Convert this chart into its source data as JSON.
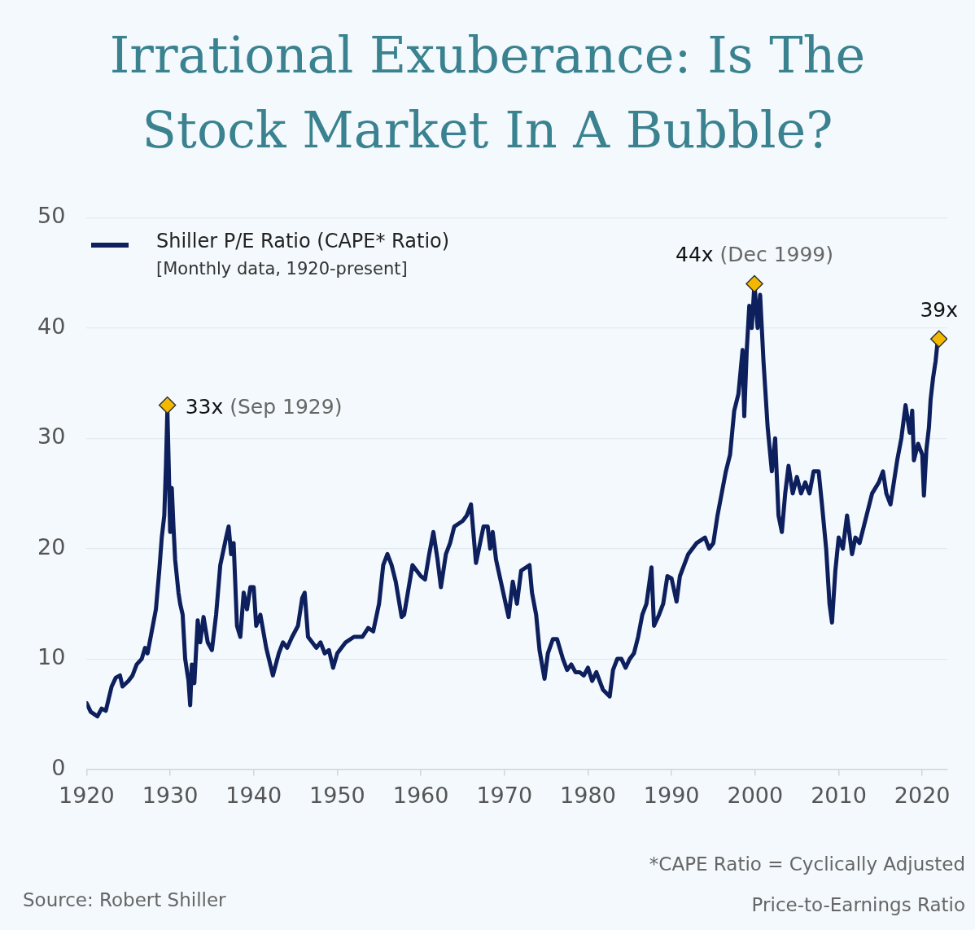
{
  "chart_data": {
    "type": "line",
    "title": "Irrational Exuberance: Is The Stock Market In A Bubble?",
    "annotations": [
      "[Monthly data, 1920-present]",
      "*CAPE Ratio = Cyclically Adjusted Price-to-Earnings Ratio",
      "Source: Robert Shiller"
    ],
    "xlim": [
      1920,
      2023
    ],
    "xticks": [
      1920,
      1930,
      1940,
      1950,
      1960,
      1970,
      1980,
      1990,
      2000,
      2010,
      2020
    ],
    "ylim": [
      0,
      50
    ],
    "yticks": [
      0,
      10,
      20,
      30,
      40,
      50
    ],
    "grid": "y",
    "legend": "top left",
    "line_style": "solid",
    "series": [
      {
        "name": "Shiller P/E Ratio (CAPE* Ratio)",
        "color": "#0d1f5c",
        "marker": "none",
        "x": [
          1920.0,
          1920.5,
          1921.3,
          1921.8,
          1922.3,
          1923.0,
          1923.5,
          1924.0,
          1924.3,
          1925.0,
          1925.5,
          1926.0,
          1926.6,
          1927.0,
          1927.3,
          1927.8,
          1928.3,
          1928.7,
          1929.0,
          1929.3,
          1929.5,
          1929.67,
          1929.85,
          1930.0,
          1930.2,
          1930.4,
          1930.6,
          1931.0,
          1931.2,
          1931.5,
          1931.8,
          1932.2,
          1932.4,
          1932.6,
          1932.9,
          1933.3,
          1933.6,
          1934.0,
          1934.5,
          1935.0,
          1935.5,
          1936.0,
          1936.7,
          1937.0,
          1937.3,
          1937.6,
          1938.0,
          1938.4,
          1938.8,
          1939.2,
          1939.6,
          1940.0,
          1940.3,
          1940.8,
          1941.5,
          1942.3,
          1943.0,
          1943.5,
          1944.0,
          1944.6,
          1945.3,
          1945.8,
          1946.1,
          1946.5,
          1947.0,
          1947.5,
          1948.0,
          1948.5,
          1949.0,
          1949.5,
          1950.0,
          1951.0,
          1952.0,
          1953.0,
          1953.7,
          1954.3,
          1955.0,
          1955.5,
          1956.0,
          1956.5,
          1957.0,
          1957.7,
          1958.0,
          1959.0,
          1959.5,
          1960.0,
          1960.5,
          1961.0,
          1961.5,
          1962.0,
          1962.4,
          1963.0,
          1963.5,
          1964.0,
          1965.0,
          1965.5,
          1966.0,
          1966.6,
          1967.5,
          1968.0,
          1968.3,
          1968.6,
          1969.0,
          1970.5,
          1971.0,
          1971.5,
          1972.0,
          1973.0,
          1973.3,
          1973.8,
          1974.2,
          1974.8,
          1975.2,
          1975.8,
          1976.3,
          1977.0,
          1977.5,
          1978.0,
          1978.5,
          1979.0,
          1979.5,
          1980.0,
          1980.5,
          1981.0,
          1981.8,
          1982.6,
          1983.0,
          1983.5,
          1984.0,
          1984.5,
          1985.0,
          1985.5,
          1986.0,
          1986.5,
          1987.0,
          1987.6,
          1987.9,
          1988.5,
          1989.0,
          1989.5,
          1990.0,
          1990.6,
          1991.0,
          1992.0,
          1993.0,
          1994.0,
          1994.5,
          1995.0,
          1995.5,
          1996.0,
          1996.5,
          1997.0,
          1997.5,
          1998.0,
          1998.5,
          1998.7,
          1999.0,
          1999.3,
          1999.6,
          1999.92,
          2000.3,
          2000.6,
          2001.0,
          2001.5,
          2002.0,
          2002.4,
          2002.8,
          2003.2,
          2003.6,
          2004.0,
          2004.5,
          2005.0,
          2005.5,
          2006.0,
          2006.5,
          2007.0,
          2007.6,
          2008.0,
          2008.5,
          2008.9,
          2009.2,
          2009.6,
          2010.0,
          2010.5,
          2011.0,
          2011.6,
          2012.0,
          2012.5,
          2013.0,
          2014.0,
          2014.8,
          2015.3,
          2015.7,
          2016.2,
          2016.7,
          2017.0,
          2017.5,
          2018.0,
          2018.5,
          2018.8,
          2019.0,
          2019.5,
          2020.0,
          2020.2,
          2020.5,
          2020.8,
          2021.0,
          2021.3,
          2021.6,
          2021.8,
          2022.0
        ],
        "values": [
          6.0,
          5.2,
          4.8,
          5.5,
          5.3,
          7.5,
          8.3,
          8.5,
          7.5,
          8.0,
          8.5,
          9.5,
          10,
          11,
          10.5,
          12.5,
          14.5,
          18,
          21,
          23,
          27.5,
          32.6,
          27,
          21.5,
          25.5,
          22,
          19,
          16,
          15,
          14,
          10,
          8,
          5.8,
          9.5,
          7.8,
          13.5,
          11.5,
          13.8,
          11.5,
          10.8,
          14,
          18.5,
          21,
          22,
          19.5,
          20.5,
          13,
          12,
          16,
          14.5,
          16.5,
          16.5,
          13,
          14,
          11,
          8.5,
          10.5,
          11.5,
          11,
          12,
          13,
          15.5,
          16,
          12,
          11.5,
          11,
          11.5,
          10.5,
          10.8,
          9.2,
          10.5,
          11.5,
          12,
          12,
          12.8,
          12.5,
          15,
          18.5,
          19.5,
          18.5,
          17,
          13.8,
          14,
          18.5,
          18,
          17.5,
          17.2,
          19.5,
          21.5,
          19,
          16.5,
          19.5,
          20.5,
          22,
          22.5,
          23,
          24,
          18.7,
          22,
          22,
          20,
          21.5,
          19,
          13.8,
          17,
          15,
          18,
          18.5,
          16,
          14,
          10.8,
          8.2,
          10.5,
          11.8,
          11.8,
          10,
          9,
          9.5,
          8.8,
          8.8,
          8.5,
          9.2,
          8,
          8.8,
          7.2,
          6.6,
          9,
          10,
          10,
          9.2,
          10,
          10.5,
          12,
          14,
          15,
          18.3,
          13,
          14,
          15,
          17.5,
          17.3,
          15.2,
          17.5,
          19.5,
          20.5,
          21,
          20,
          20.5,
          23,
          25,
          27,
          28.5,
          32.5,
          34,
          38,
          32,
          38,
          42,
          40,
          44,
          40,
          43,
          37,
          31,
          27,
          30,
          23,
          21.5,
          25,
          27.5,
          25,
          26.5,
          25,
          26,
          25,
          27,
          27,
          24,
          20,
          15,
          13.3,
          18,
          21,
          20,
          23,
          19.5,
          21,
          20.5,
          22,
          25,
          26,
          27,
          25,
          24,
          26.5,
          28,
          30,
          33,
          30.5,
          32.5,
          28,
          29.5,
          28.5,
          24.8,
          29,
          31,
          33.5,
          35.5,
          37,
          38.5,
          39
        ]
      },
      {
        "type": "scatter",
        "color": "#f5b800",
        "marker": "diamond",
        "x": [
          1929.67,
          1999.92,
          2022.0
        ],
        "values": [
          33,
          44,
          39
        ],
        "value_labels": [
          "33x (Sep 1929)",
          "44x (Dec 1999)",
          "39x"
        ]
      }
    ]
  }
}
